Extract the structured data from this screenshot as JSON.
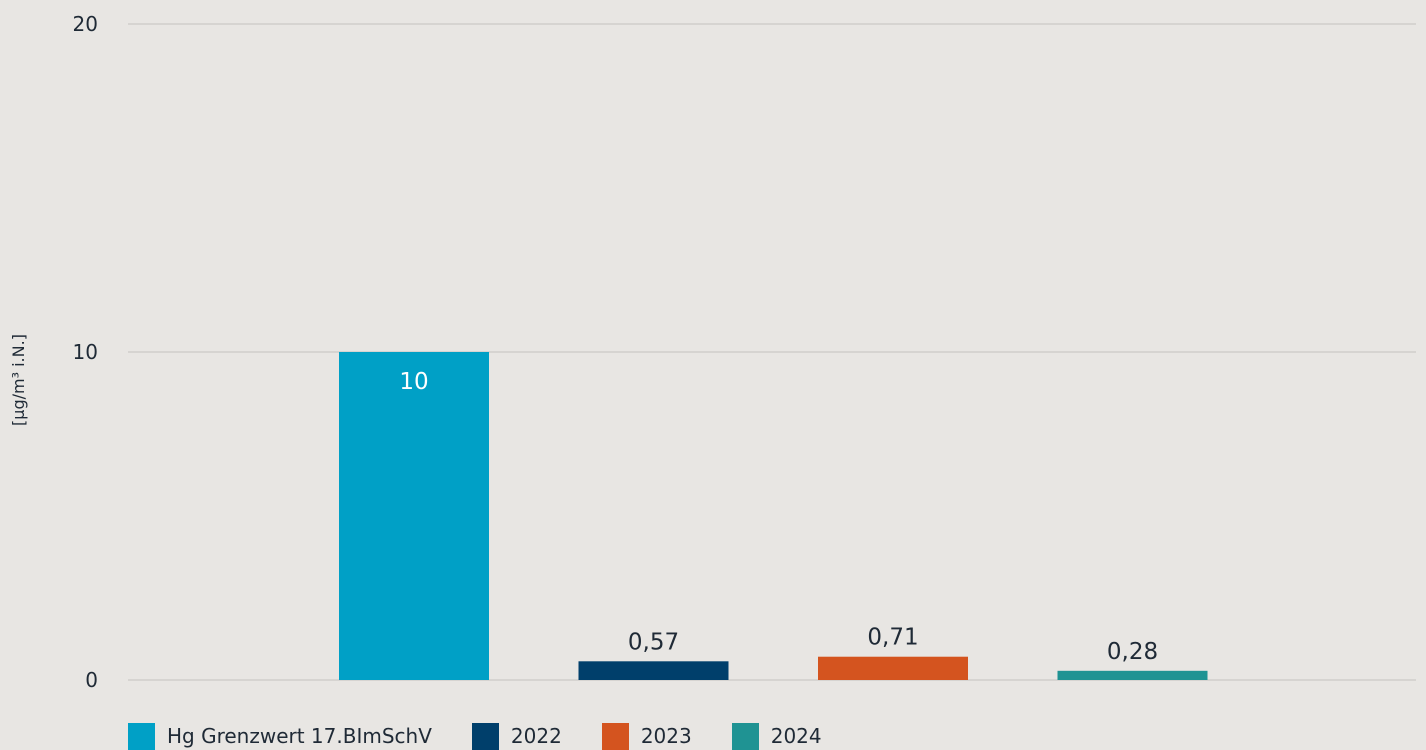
{
  "chart_data": {
    "type": "bar",
    "ylabel": "[µg/m³ i.N.]",
    "ylim": [
      0,
      20
    ],
    "yticks": [
      "0",
      "10",
      "20"
    ],
    "grid": true,
    "legend_position": "bottom-left",
    "series": [
      {
        "name": "Hg Grenzwert 17.BImSchV",
        "value": 10,
        "label": "10",
        "color": "#00a0c6"
      },
      {
        "name": "2022",
        "value": 0.57,
        "label": "0,57",
        "color": "#003f6b"
      },
      {
        "name": "2023",
        "value": 0.71,
        "label": "0,71",
        "color": "#d4541f"
      },
      {
        "name": "2024",
        "value": 0.28,
        "label": "0,28",
        "color": "#1f9393"
      }
    ]
  }
}
